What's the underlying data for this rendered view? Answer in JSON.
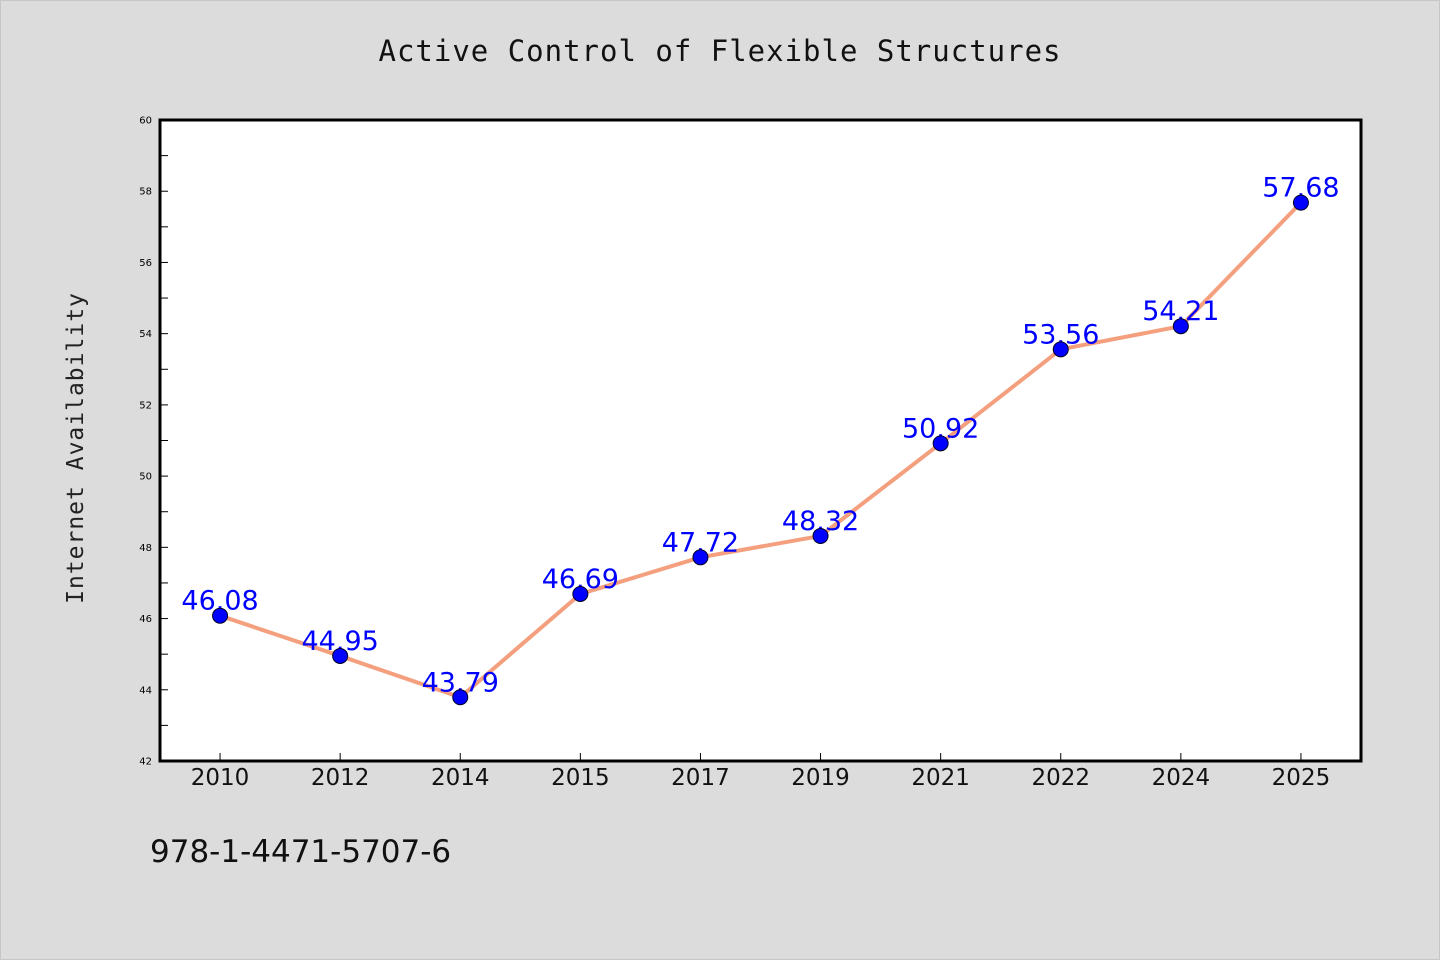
{
  "chart_data": {
    "type": "line",
    "title": "Active Control of Flexible Structures",
    "xlabel": "",
    "ylabel": "Internet Availability",
    "categories": [
      "2010",
      "2012",
      "2014",
      "2015",
      "2017",
      "2019",
      "2021",
      "2022",
      "2024",
      "2025"
    ],
    "series": [
      {
        "values": [
          46.08,
          44.95,
          43.79,
          46.69,
          47.72,
          48.32,
          50.92,
          53.56,
          54.21,
          57.68
        ],
        "line_color": "#f4a07e",
        "marker_color": "#0000ff"
      }
    ],
    "data_labels": [
      "46.08",
      "44.95",
      "43.79",
      "46.69",
      "47.72",
      "48.32",
      "50.92",
      "53.56",
      "54.21",
      "57.68"
    ],
    "ylim": [
      42,
      60
    ],
    "y_ticks": [
      "42",
      "44",
      "46",
      "48",
      "50",
      "52",
      "54",
      "56",
      "58",
      "60"
    ],
    "grid": false,
    "legend": "none"
  },
  "footer": {
    "isbn": "978-1-4471-5707-6"
  },
  "colors": {
    "background": "#dcdcdc",
    "plot_background": "#ffffff",
    "line": "#f4a07e",
    "marker": "#0000ff",
    "data_label": "#0000ff"
  }
}
